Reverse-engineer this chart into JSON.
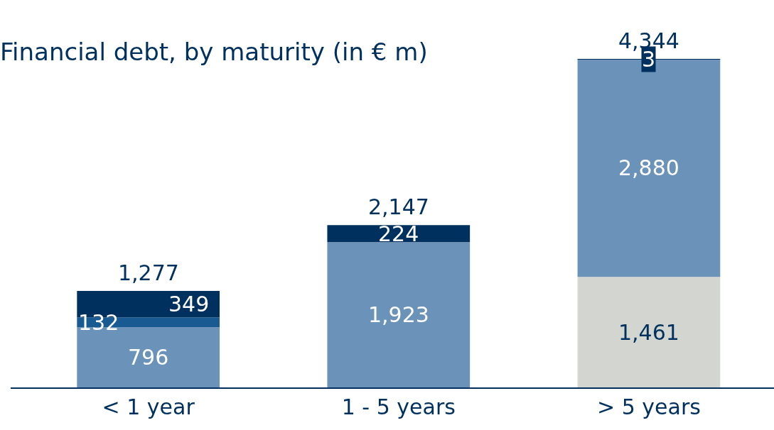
{
  "chart_data": {
    "type": "bar",
    "title": "Financial debt, by maturity (in € m)",
    "stacked": true,
    "categories": [
      "< 1 year",
      "1 - 5 years",
      "> 5 years"
    ],
    "series": [
      {
        "color": "#d3d6d0",
        "values": [
          null,
          null,
          1461
        ],
        "value_labels": [
          null,
          null,
          "1,461"
        ]
      },
      {
        "color": "#6b92b8",
        "values": [
          796,
          1923,
          2880
        ],
        "value_labels": [
          "796",
          "1,923",
          "2,880"
        ]
      },
      {
        "color": "#1a5a92",
        "values": [
          132,
          null,
          null
        ],
        "value_labels": [
          "132",
          null,
          null
        ]
      },
      {
        "color": "#00305d",
        "values": [
          349,
          224,
          3
        ],
        "value_labels": [
          "349",
          "224",
          "3"
        ]
      }
    ],
    "totals": [
      "1,277",
      "2,147",
      "4,344"
    ]
  }
}
